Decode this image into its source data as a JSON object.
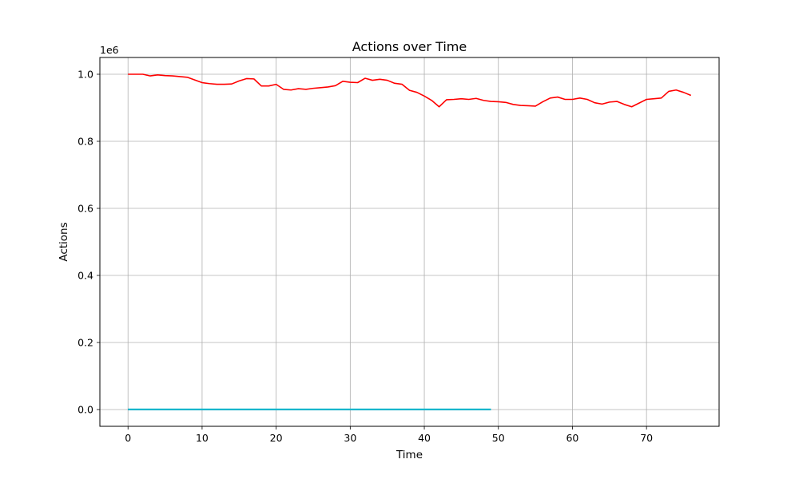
{
  "chart_data": {
    "type": "line",
    "title": "Actions over Time",
    "xlabel": "Time",
    "ylabel": "Actions",
    "y_offset_label": "1e6",
    "xlim": [
      -3.8,
      79.8
    ],
    "ylim": [
      -0.05,
      1.05
    ],
    "xticks": [
      0,
      10,
      20,
      30,
      40,
      50,
      60,
      70
    ],
    "yticks": [
      0.0,
      0.2,
      0.4,
      0.6,
      0.8,
      1.0
    ],
    "ytick_labels": [
      "0.0",
      "0.2",
      "0.4",
      "0.6",
      "0.8",
      "1.0"
    ],
    "grid": true,
    "series": [
      {
        "color": "#ff0000",
        "x": [
          0,
          1,
          2,
          3,
          4,
          5,
          6,
          7,
          8,
          9,
          10,
          11,
          12,
          13,
          14,
          15,
          16,
          17,
          18,
          19,
          20,
          21,
          22,
          23,
          24,
          25,
          26,
          27,
          28,
          29,
          30,
          31,
          32,
          33,
          34,
          35,
          36,
          37,
          38,
          39,
          40,
          41,
          42,
          43,
          44,
          45,
          46,
          47,
          48,
          49,
          50,
          51,
          52,
          53,
          54,
          55,
          56,
          57,
          58,
          59,
          60,
          61,
          62,
          63,
          64,
          65,
          66,
          67,
          68,
          69,
          70,
          71,
          72,
          73,
          74,
          75,
          76
        ],
        "y": [
          1.0,
          1.0,
          1.0,
          0.995,
          0.998,
          0.996,
          0.995,
          0.993,
          0.991,
          0.983,
          0.975,
          0.972,
          0.97,
          0.97,
          0.971,
          0.98,
          0.987,
          0.986,
          0.965,
          0.965,
          0.97,
          0.955,
          0.953,
          0.957,
          0.955,
          0.958,
          0.96,
          0.962,
          0.966,
          0.979,
          0.976,
          0.975,
          0.988,
          0.982,
          0.985,
          0.982,
          0.973,
          0.97,
          0.952,
          0.946,
          0.935,
          0.922,
          0.903,
          0.924,
          0.925,
          0.927,
          0.925,
          0.928,
          0.922,
          0.919,
          0.918,
          0.916,
          0.91,
          0.907,
          0.906,
          0.905,
          0.918,
          0.929,
          0.932,
          0.925,
          0.925,
          0.929,
          0.925,
          0.915,
          0.911,
          0.917,
          0.919,
          0.91,
          0.903,
          0.914,
          0.925,
          0.927,
          0.929,
          0.949,
          0.953,
          0.946,
          0.937
        ]
      },
      {
        "color": "#1f77b4",
        "x": [
          0,
          49
        ],
        "y": [
          0.0,
          0.0
        ]
      },
      {
        "color": "#17becf",
        "x": [
          0,
          49
        ],
        "y": [
          0.0005,
          0.0005
        ]
      }
    ]
  }
}
